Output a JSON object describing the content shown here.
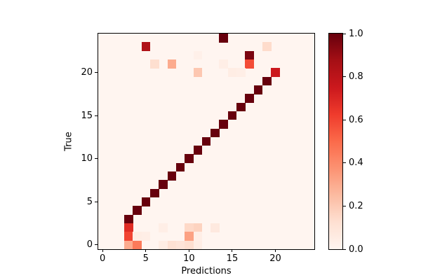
{
  "chart_data": {
    "type": "heatmap",
    "title": "",
    "xlabel": "Predictions",
    "ylabel": "True",
    "grid_size": 25,
    "x_range": [
      -0.5,
      24.5
    ],
    "y_range": [
      -0.5,
      24.5
    ],
    "x_ticks": [
      0,
      5,
      10,
      15,
      20
    ],
    "y_ticks": [
      0,
      5,
      10,
      15,
      20
    ],
    "value_range": [
      0.0,
      1.0
    ],
    "colormap": "Reds",
    "colormap_stops": [
      {
        "t": 0.0,
        "color": "#fff5f0"
      },
      {
        "t": 0.125,
        "color": "#fee0d2"
      },
      {
        "t": 0.25,
        "color": "#fcbba1"
      },
      {
        "t": 0.375,
        "color": "#fc9272"
      },
      {
        "t": 0.5,
        "color": "#fb6a4a"
      },
      {
        "t": 0.625,
        "color": "#ef3b2c"
      },
      {
        "t": 0.75,
        "color": "#cb181d"
      },
      {
        "t": 0.875,
        "color": "#a50f15"
      },
      {
        "t": 1.0,
        "color": "#67000d"
      }
    ],
    "background_value": 0.0,
    "cells": [
      {
        "x": 3,
        "y": 3,
        "v": 1.0
      },
      {
        "x": 4,
        "y": 4,
        "v": 1.0
      },
      {
        "x": 5,
        "y": 5,
        "v": 1.0
      },
      {
        "x": 6,
        "y": 6,
        "v": 1.0
      },
      {
        "x": 7,
        "y": 7,
        "v": 1.0
      },
      {
        "x": 8,
        "y": 8,
        "v": 1.0
      },
      {
        "x": 9,
        "y": 9,
        "v": 1.0
      },
      {
        "x": 10,
        "y": 10,
        "v": 1.0
      },
      {
        "x": 11,
        "y": 11,
        "v": 1.0
      },
      {
        "x": 12,
        "y": 12,
        "v": 1.0
      },
      {
        "x": 13,
        "y": 13,
        "v": 1.0
      },
      {
        "x": 14,
        "y": 14,
        "v": 1.0
      },
      {
        "x": 15,
        "y": 15,
        "v": 1.0
      },
      {
        "x": 16,
        "y": 16,
        "v": 1.0
      },
      {
        "x": 17,
        "y": 17,
        "v": 1.0
      },
      {
        "x": 18,
        "y": 18,
        "v": 1.0
      },
      {
        "x": 19,
        "y": 19,
        "v": 1.0
      },
      {
        "x": 20,
        "y": 20,
        "v": 0.75
      },
      {
        "x": 14,
        "y": 24,
        "v": 1.0
      },
      {
        "x": 5,
        "y": 23,
        "v": 0.84
      },
      {
        "x": 19,
        "y": 23,
        "v": 0.14
      },
      {
        "x": 17,
        "y": 22,
        "v": 0.96
      },
      {
        "x": 11,
        "y": 22,
        "v": 0.03
      },
      {
        "x": 6,
        "y": 21,
        "v": 0.13
      },
      {
        "x": 8,
        "y": 21,
        "v": 0.3
      },
      {
        "x": 14,
        "y": 21,
        "v": 0.04
      },
      {
        "x": 17,
        "y": 21,
        "v": 0.58
      },
      {
        "x": 11,
        "y": 20,
        "v": 0.21
      },
      {
        "x": 15,
        "y": 20,
        "v": 0.05
      },
      {
        "x": 16,
        "y": 20,
        "v": 0.04
      },
      {
        "x": 3,
        "y": 2,
        "v": 0.68
      },
      {
        "x": 7,
        "y": 2,
        "v": 0.04
      },
      {
        "x": 10,
        "y": 2,
        "v": 0.15
      },
      {
        "x": 11,
        "y": 2,
        "v": 0.17
      },
      {
        "x": 13,
        "y": 2,
        "v": 0.07
      },
      {
        "x": 3,
        "y": 1,
        "v": 0.6
      },
      {
        "x": 4,
        "y": 1,
        "v": 0.05
      },
      {
        "x": 5,
        "y": 1,
        "v": 0.04
      },
      {
        "x": 10,
        "y": 1,
        "v": 0.33
      },
      {
        "x": 11,
        "y": 1,
        "v": 0.04
      },
      {
        "x": 3,
        "y": 0,
        "v": 0.3
      },
      {
        "x": 4,
        "y": 0,
        "v": 0.45
      },
      {
        "x": 7,
        "y": 0,
        "v": 0.05
      },
      {
        "x": 8,
        "y": 0,
        "v": 0.12
      },
      {
        "x": 9,
        "y": 0,
        "v": 0.1
      },
      {
        "x": 10,
        "y": 0,
        "v": 0.13
      },
      {
        "x": 11,
        "y": 0,
        "v": 0.05
      }
    ],
    "colorbar": {
      "ticks": [
        {
          "v": 1.0,
          "label": "1.0"
        },
        {
          "v": 0.8,
          "label": "0.8"
        },
        {
          "v": 0.6,
          "label": "0.6"
        },
        {
          "v": 0.4,
          "label": "0.4"
        },
        {
          "v": 0.2,
          "label": "0.2"
        },
        {
          "v": 0.0,
          "label": "0.0"
        }
      ],
      "position": "right"
    },
    "legend": null,
    "grid": false
  }
}
